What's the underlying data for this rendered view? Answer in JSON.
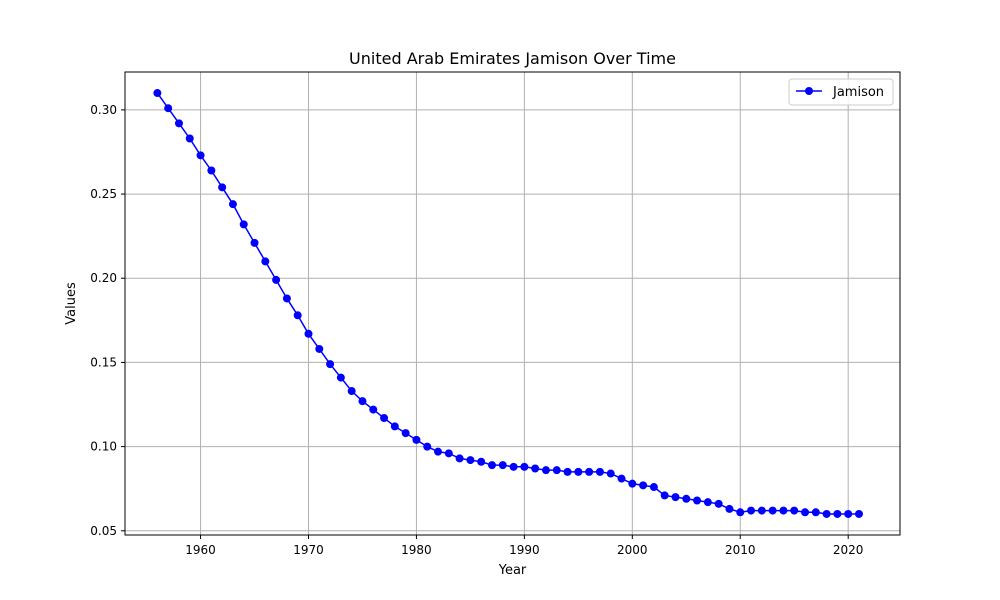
{
  "chart_data": {
    "type": "line",
    "title": "United Arab Emirates Jamison Over Time",
    "xlabel": "Year",
    "ylabel": "Values",
    "xlim": [
      1953,
      2024.8
    ],
    "ylim": [
      0.0475,
      0.3225
    ],
    "xticks": [
      1960,
      1970,
      1980,
      1990,
      2000,
      2010,
      2020
    ],
    "yticks": [
      0.05,
      0.1,
      0.15,
      0.2,
      0.25,
      0.3
    ],
    "ytick_labels": [
      "0.05",
      "0.10",
      "0.15",
      "0.20",
      "0.25",
      "0.30"
    ],
    "grid": true,
    "legend_position": "top-right",
    "series": [
      {
        "name": "Jamison",
        "color": "#0000ff",
        "marker": "circle",
        "x": [
          1956,
          1957,
          1958,
          1959,
          1960,
          1961,
          1962,
          1963,
          1964,
          1965,
          1966,
          1967,
          1968,
          1969,
          1970,
          1971,
          1972,
          1973,
          1974,
          1975,
          1976,
          1977,
          1978,
          1979,
          1980,
          1981,
          1982,
          1983,
          1984,
          1985,
          1986,
          1987,
          1988,
          1989,
          1990,
          1991,
          1992,
          1993,
          1994,
          1995,
          1996,
          1997,
          1998,
          1999,
          2000,
          2001,
          2002,
          2003,
          2004,
          2005,
          2006,
          2007,
          2008,
          2009,
          2010,
          2011,
          2012,
          2013,
          2014,
          2015,
          2016,
          2017,
          2018,
          2019,
          2020,
          2021
        ],
        "y": [
          0.31,
          0.301,
          0.292,
          0.283,
          0.273,
          0.264,
          0.254,
          0.244,
          0.232,
          0.221,
          0.21,
          0.199,
          0.188,
          0.178,
          0.167,
          0.158,
          0.149,
          0.141,
          0.133,
          0.127,
          0.122,
          0.117,
          0.112,
          0.108,
          0.104,
          0.1,
          0.097,
          0.096,
          0.093,
          0.092,
          0.091,
          0.089,
          0.089,
          0.088,
          0.088,
          0.087,
          0.086,
          0.086,
          0.085,
          0.085,
          0.085,
          0.085,
          0.084,
          0.081,
          0.078,
          0.077,
          0.076,
          0.071,
          0.07,
          0.069,
          0.068,
          0.067,
          0.066,
          0.063,
          0.061,
          0.062,
          0.062,
          0.062,
          0.062,
          0.062,
          0.061,
          0.061,
          0.06,
          0.06,
          0.06,
          0.06
        ]
      }
    ]
  }
}
